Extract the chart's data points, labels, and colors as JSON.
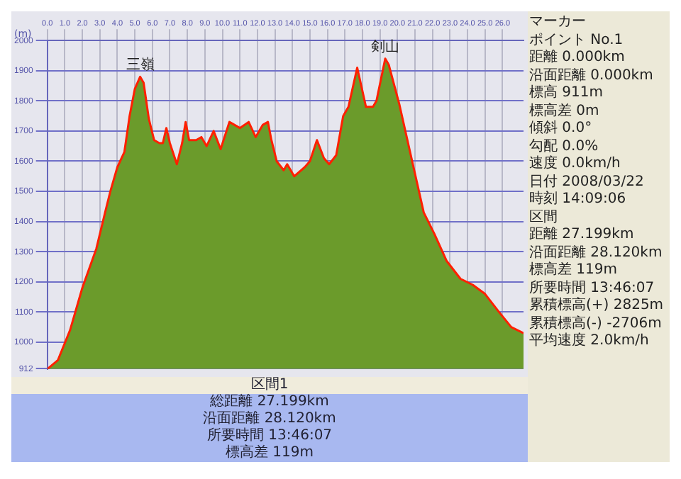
{
  "chart_data": {
    "type": "area",
    "ylabel": "(m)",
    "x": [
      0,
      0.6,
      1.3,
      2.0,
      2.8,
      3.3,
      3.6,
      4.0,
      4.4,
      4.7,
      5.0,
      5.3,
      5.5,
      5.8,
      6.1,
      6.4,
      6.6,
      6.8,
      7.0,
      7.4,
      7.7,
      7.9,
      8.1,
      8.5,
      8.8,
      9.1,
      9.5,
      9.9,
      10.4,
      11.0,
      11.5,
      11.9,
      12.3,
      12.6,
      12.8,
      13.1,
      13.5,
      13.7,
      14.1,
      14.7,
      15.0,
      15.4,
      15.8,
      16.1,
      16.5,
      16.9,
      17.2,
      17.7,
      18.2,
      18.6,
      18.8,
      19.3,
      19.5,
      20.1,
      20.8,
      21.5,
      22.1,
      22.8,
      23.6,
      24.3,
      25.0,
      25.8,
      26.5,
      27.199
    ],
    "series": [
      {
        "color": "#6b9b2b",
        "values": [
          911,
          940,
          1040,
          1180,
          1310,
          1430,
          1500,
          1580,
          1630,
          1750,
          1840,
          1880,
          1860,
          1740,
          1670,
          1660,
          1660,
          1710,
          1660,
          1590,
          1660,
          1730,
          1670,
          1670,
          1680,
          1650,
          1700,
          1640,
          1730,
          1710,
          1730,
          1680,
          1720,
          1730,
          1670,
          1600,
          1570,
          1590,
          1550,
          1580,
          1600,
          1670,
          1610,
          1590,
          1620,
          1750,
          1780,
          1910,
          1780,
          1780,
          1800,
          1940,
          1920,
          1790,
          1610,
          1430,
          1360,
          1270,
          1210,
          1190,
          1160,
          1100,
          1050,
          1030
        ]
      }
    ],
    "xlim": [
      0,
      27.199
    ],
    "xticks": [
      {
        "value": 0,
        "label": "0.0"
      },
      {
        "value": 1,
        "label": "1.0"
      },
      {
        "value": 2,
        "label": "2.0"
      },
      {
        "value": 3,
        "label": "3.0"
      },
      {
        "value": 4,
        "label": "4.0"
      },
      {
        "value": 5,
        "label": "5.0"
      },
      {
        "value": 6,
        "label": "6.0"
      },
      {
        "value": 7,
        "label": "7.0"
      },
      {
        "value": 8,
        "label": "8.0"
      },
      {
        "value": 9,
        "label": "9.0"
      },
      {
        "value": 10,
        "label": "10.0"
      },
      {
        "value": 11,
        "label": "11.0"
      },
      {
        "value": 12,
        "label": "12.0"
      },
      {
        "value": 13,
        "label": "13.0"
      },
      {
        "value": 14,
        "label": "14.0"
      },
      {
        "value": 15,
        "label": "15.0"
      },
      {
        "value": 16,
        "label": "16.0"
      },
      {
        "value": 17,
        "label": "17.0"
      },
      {
        "value": 18,
        "label": "18.0"
      },
      {
        "value": 19,
        "label": "19.0"
      },
      {
        "value": 20,
        "label": "20.0"
      },
      {
        "value": 21,
        "label": "21.0"
      },
      {
        "value": 22,
        "label": "22.0"
      },
      {
        "value": 23,
        "label": "23.0"
      },
      {
        "value": 24,
        "label": "24.0"
      },
      {
        "value": 25,
        "label": "25.0"
      },
      {
        "value": 26,
        "label": "26.0"
      }
    ],
    "ylim": [
      911,
      2000
    ],
    "yticks": [
      912,
      1000,
      1100,
      1200,
      1300,
      1400,
      1500,
      1600,
      1700,
      1800,
      1900,
      2000
    ],
    "grid": true,
    "legend": false,
    "annotations": [
      {
        "text": "三嶺",
        "x": 5.3,
        "y": 1880
      },
      {
        "text": "剣山",
        "x": 19.3,
        "y": 1940
      },
      "マーカー",
      "ポイント No.1",
      "距離 0.000km",
      "沿面距離 0.000km",
      "標高 911m",
      "標高差 0m",
      "傾斜 0.0°",
      "勾配 0.0%",
      "速度 0.0km/h",
      "日付 2008/03/22",
      "時刻 14:09:06",
      "区間",
      "距離 27.199km",
      "沿面距離 28.120km",
      "標高差 119m",
      "所要時間 13:46:07",
      "累積標高(+) 2825m",
      "累積標高(-) -2706m",
      "平均速度 2.0km/h",
      "区間1",
      "総距離 27.199km",
      "沿面距離 28.120km",
      "所要時間 13:46:07",
      "標高差 119m"
    ]
  }
}
